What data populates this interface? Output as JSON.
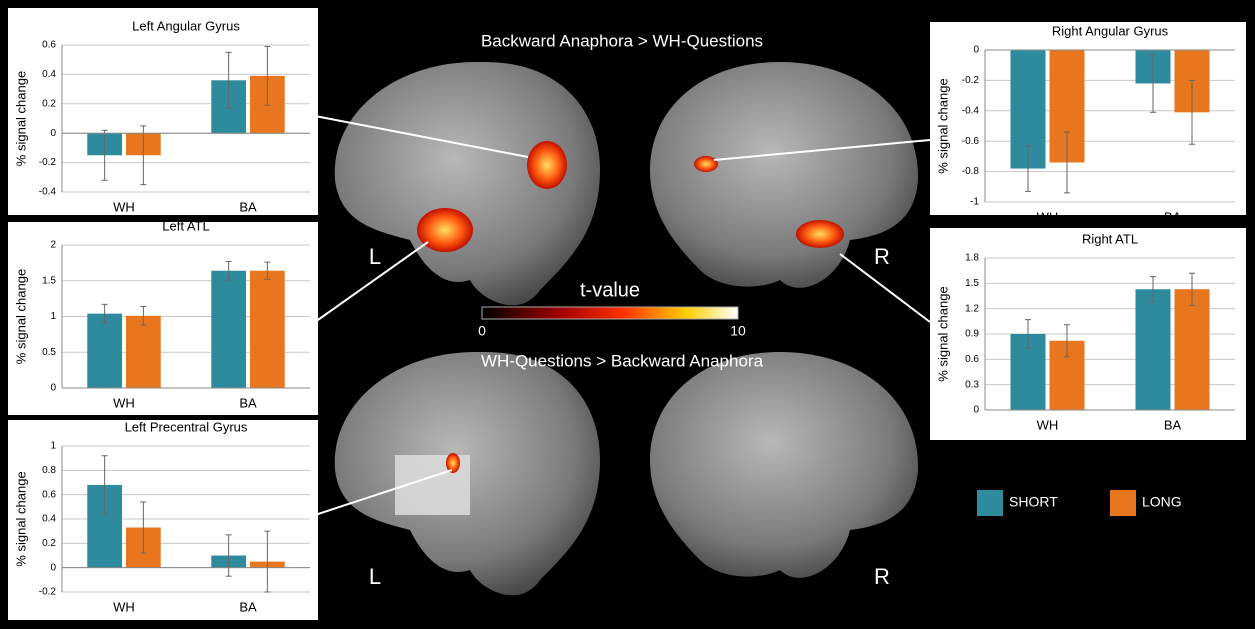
{
  "figure": {
    "top_heading": "Backward Anaphora > WH-Questions",
    "bottom_heading": "WH-Questions > Backward Anaphora",
    "left_label_top": "L",
    "right_label_top": "R",
    "left_label_bottom": "L",
    "right_label_bottom": "R",
    "colorbar": {
      "label": "t-value",
      "ticks": [
        0,
        10
      ]
    }
  },
  "legend": [
    {
      "name": "SHORT",
      "color": "#2e8b9e"
    },
    {
      "name": "LONG",
      "color": "#e8761e"
    }
  ],
  "chart_data": [
    {
      "type": "bar",
      "title": "Left Angular Gyrus",
      "y_label": "% signal change",
      "categories": [
        "WH",
        "BA"
      ],
      "series": [
        {
          "color": "#2e8b9e",
          "values": [
            -0.15,
            0.36
          ],
          "errors": [
            0.17,
            0.19
          ]
        },
        {
          "color": "#e8761e",
          "values": [
            -0.15,
            0.39
          ],
          "errors": [
            0.2,
            0.2
          ]
        }
      ],
      "ylim": [
        -0.4,
        0.6
      ],
      "yticks": [
        -0.4,
        -0.2,
        0,
        0.2,
        0.4,
        0.6
      ],
      "grid": true
    },
    {
      "type": "bar",
      "title": "Left ATL",
      "y_label": "% signal change",
      "categories": [
        "WH",
        "BA"
      ],
      "series": [
        {
          "color": "#2e8b9e",
          "values": [
            1.04,
            1.64
          ],
          "errors": [
            0.13,
            0.13
          ]
        },
        {
          "color": "#e8761e",
          "values": [
            1.01,
            1.64
          ],
          "errors": [
            0.13,
            0.12
          ]
        }
      ],
      "ylim": [
        0,
        2
      ],
      "yticks": [
        0,
        0.5,
        1,
        1.5,
        2
      ],
      "grid": true
    },
    {
      "type": "bar",
      "title": "Left Precentral Gyrus",
      "y_label": "% signal change",
      "categories": [
        "WH",
        "BA"
      ],
      "series": [
        {
          "color": "#2e8b9e",
          "values": [
            0.68,
            0.1
          ],
          "errors": [
            0.24,
            0.17
          ]
        },
        {
          "color": "#e8761e",
          "values": [
            0.33,
            0.05
          ],
          "errors": [
            0.21,
            0.25
          ]
        }
      ],
      "ylim": [
        -0.2,
        1
      ],
      "yticks": [
        -0.2,
        0,
        0.2,
        0.4,
        0.6,
        0.8,
        1
      ],
      "grid": true
    },
    {
      "type": "bar",
      "title": "Right Angular Gyrus",
      "y_label": "% signal change",
      "categories": [
        "WH",
        "BA"
      ],
      "series": [
        {
          "color": "#2e8b9e",
          "values": [
            -0.78,
            -0.22
          ],
          "errors": [
            0.15,
            0.19
          ]
        },
        {
          "color": "#e8761e",
          "values": [
            -0.74,
            -0.41
          ],
          "errors": [
            0.2,
            0.21
          ]
        }
      ],
      "ylim": [
        -1,
        0
      ],
      "yticks": [
        -1,
        -0.8,
        -0.6,
        -0.4,
        -0.2,
        0
      ],
      "grid": true
    },
    {
      "type": "bar",
      "title": "Right ATL",
      "y_label": "% signal change",
      "categories": [
        "WH",
        "BA"
      ],
      "series": [
        {
          "color": "#2e8b9e",
          "values": [
            0.9,
            1.43
          ],
          "errors": [
            0.17,
            0.15
          ]
        },
        {
          "color": "#e8761e",
          "values": [
            0.82,
            1.43
          ],
          "errors": [
            0.19,
            0.19
          ]
        }
      ],
      "ylim": [
        0,
        1.8
      ],
      "yticks": [
        0,
        0.3,
        0.6,
        0.9,
        1.2,
        1.5,
        1.8
      ],
      "grid": true
    }
  ]
}
